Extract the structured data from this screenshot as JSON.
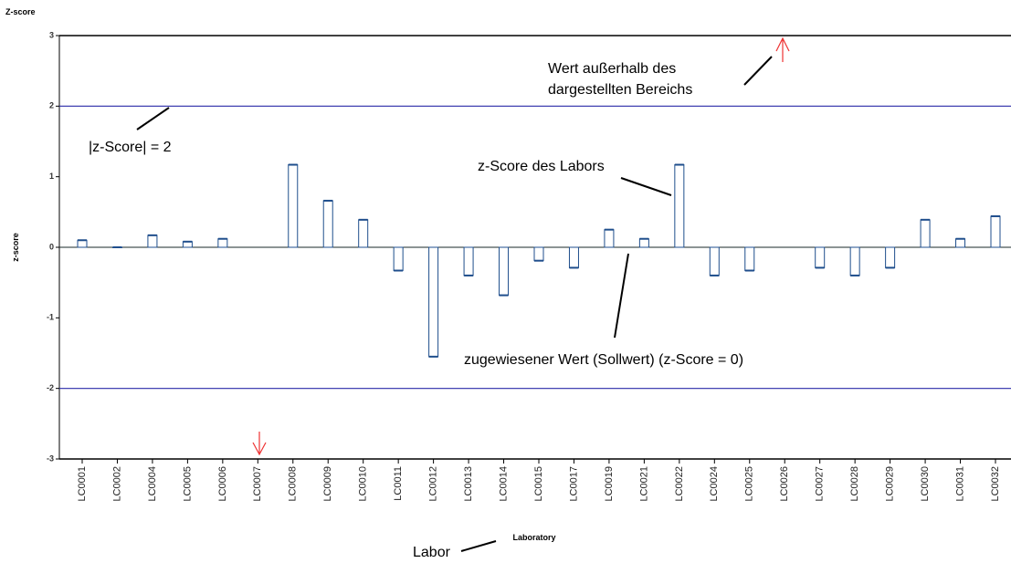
{
  "chart_data": {
    "type": "bar",
    "title": "Z-score",
    "y_label": "z-score",
    "x_label": "Laboratory",
    "categories": [
      "LC0001",
      "LC0002",
      "LC0004",
      "LC0005",
      "LC0006",
      "LC0007",
      "LC0008",
      "LC0009",
      "LC0010",
      "LC0011",
      "LC0012",
      "LC0013",
      "LC0014",
      "LC0015",
      "LC0017",
      "LC0019",
      "LC0021",
      "LC0022",
      "LC0024",
      "LC0025",
      "LC0026",
      "LC0027",
      "LC0028",
      "LC0029",
      "LC0030",
      "LC0031",
      "LC0032"
    ],
    "values": [
      0.1,
      0,
      0.17,
      0.08,
      0.12,
      null,
      1.17,
      0.66,
      0.39,
      -0.33,
      -1.55,
      -0.4,
      -0.68,
      -0.19,
      -0.29,
      0.25,
      0.12,
      1.17,
      -0.4,
      -0.33,
      null,
      -0.29,
      -0.4,
      -0.29,
      0.39,
      0.12,
      0.44
    ],
    "color": "#1f4e8c",
    "ylim": [
      -3,
      3
    ],
    "yticks": [
      -3,
      -2,
      -1,
      0,
      1,
      2,
      3
    ],
    "hlines": [
      2,
      -2
    ],
    "hline_color": "#2a2aa8",
    "annotations": [
      "Wert außerhalb des",
      "dargestellten Bereichs",
      "|z-Score| = 2",
      "z-Score des Labors",
      "zugewiesener Wert (Sollwert) (z-Score = 0)",
      "Labor"
    ]
  }
}
